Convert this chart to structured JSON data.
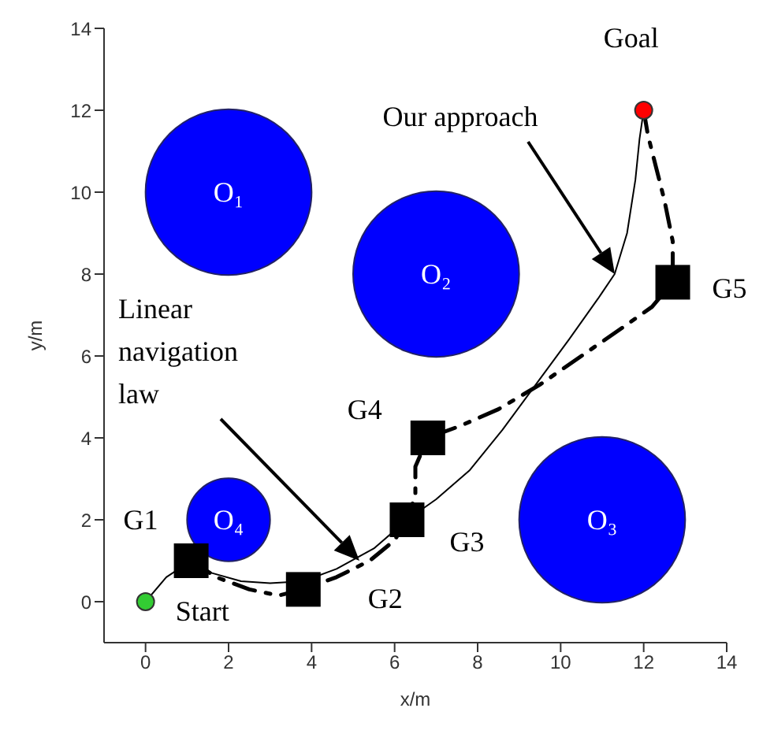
{
  "chart_data": {
    "type": "scatter",
    "xlabel": "x/m",
    "ylabel": "y/m",
    "xlim": [
      -1,
      14
    ],
    "ylim": [
      -1,
      14
    ],
    "xticks": [
      0,
      2,
      4,
      6,
      8,
      10,
      12,
      14
    ],
    "yticks": [
      0,
      2,
      4,
      6,
      8,
      10,
      12,
      14
    ],
    "grid": false,
    "legend": false,
    "series": [
      {
        "type": "bubble",
        "color": "#0000ff",
        "x": [
          2,
          7,
          11,
          2
        ],
        "values": [
          10,
          8,
          2,
          2
        ],
        "sizes": [
          1,
          1,
          1,
          0.25
        ]
      },
      {
        "type": "line",
        "color": "#000000",
        "line_style": "solid",
        "marker": "none",
        "x": [
          0,
          0.5,
          1.1,
          1.6,
          2.3,
          3.0,
          3.8,
          4.6,
          5.5,
          6.3,
          7.0,
          7.8,
          8.6,
          9.4,
          10.2,
          10.9,
          11.3,
          11.6,
          11.8,
          11.9,
          12
        ],
        "values": [
          0,
          0.6,
          1.0,
          0.7,
          0.5,
          0.45,
          0.5,
          0.8,
          1.3,
          2.0,
          2.5,
          3.2,
          4.2,
          5.3,
          6.4,
          7.4,
          8.0,
          9.0,
          10.3,
          11.3,
          12
        ]
      },
      {
        "type": "line",
        "color": "#000000",
        "line_style": "dashed",
        "marker": "none",
        "x": [
          1.1,
          1.7,
          2.5,
          3.2,
          3.8,
          4.6,
          5.4,
          6.0,
          6.3,
          6.5,
          6.5,
          6.8,
          7.6,
          8.5,
          9.5,
          10.5,
          11.5,
          12.2,
          12.7,
          12.7,
          12.5,
          12.3,
          12.1,
          12
        ],
        "values": [
          1.0,
          0.6,
          0.3,
          0.15,
          0.3,
          0.6,
          1.0,
          1.5,
          2.0,
          2.6,
          3.3,
          4.0,
          4.3,
          4.7,
          5.3,
          6.0,
          6.7,
          7.2,
          7.8,
          8.8,
          9.8,
          10.6,
          11.4,
          12
        ]
      },
      {
        "color": "#000000",
        "marker": "square",
        "x": [
          1.1,
          3.8,
          6.3,
          6.8,
          12.7
        ],
        "values": [
          1.0,
          0.3,
          2.0,
          4.0,
          7.8
        ]
      },
      {
        "color": "#33cc33",
        "marker": "circle",
        "x": [
          0
        ],
        "values": [
          0
        ]
      },
      {
        "color": "#ff0000",
        "marker": "circle",
        "x": [
          12
        ],
        "values": [
          12
        ]
      }
    ],
    "annotations": [
      {
        "text": "O₁",
        "x": 2,
        "y": 10
      },
      {
        "text": "O₂",
        "x": 7,
        "y": 8
      },
      {
        "text": "O₃",
        "x": 11,
        "y": 2
      },
      {
        "text": "O₄",
        "x": 2,
        "y": 2
      },
      {
        "text": "G1",
        "x": 1.1,
        "y": 1.0
      },
      {
        "text": "G2",
        "x": 3.8,
        "y": 0.3
      },
      {
        "text": "G3",
        "x": 6.3,
        "y": 2.0
      },
      {
        "text": "G4",
        "x": 6.8,
        "y": 4.0
      },
      {
        "text": "G5",
        "x": 12.7,
        "y": 7.8
      },
      {
        "text": "Start",
        "x": 0,
        "y": 0
      },
      {
        "text": "Goal",
        "x": 12,
        "y": 12
      },
      "Our approach",
      "Linear navigation law"
    ]
  }
}
